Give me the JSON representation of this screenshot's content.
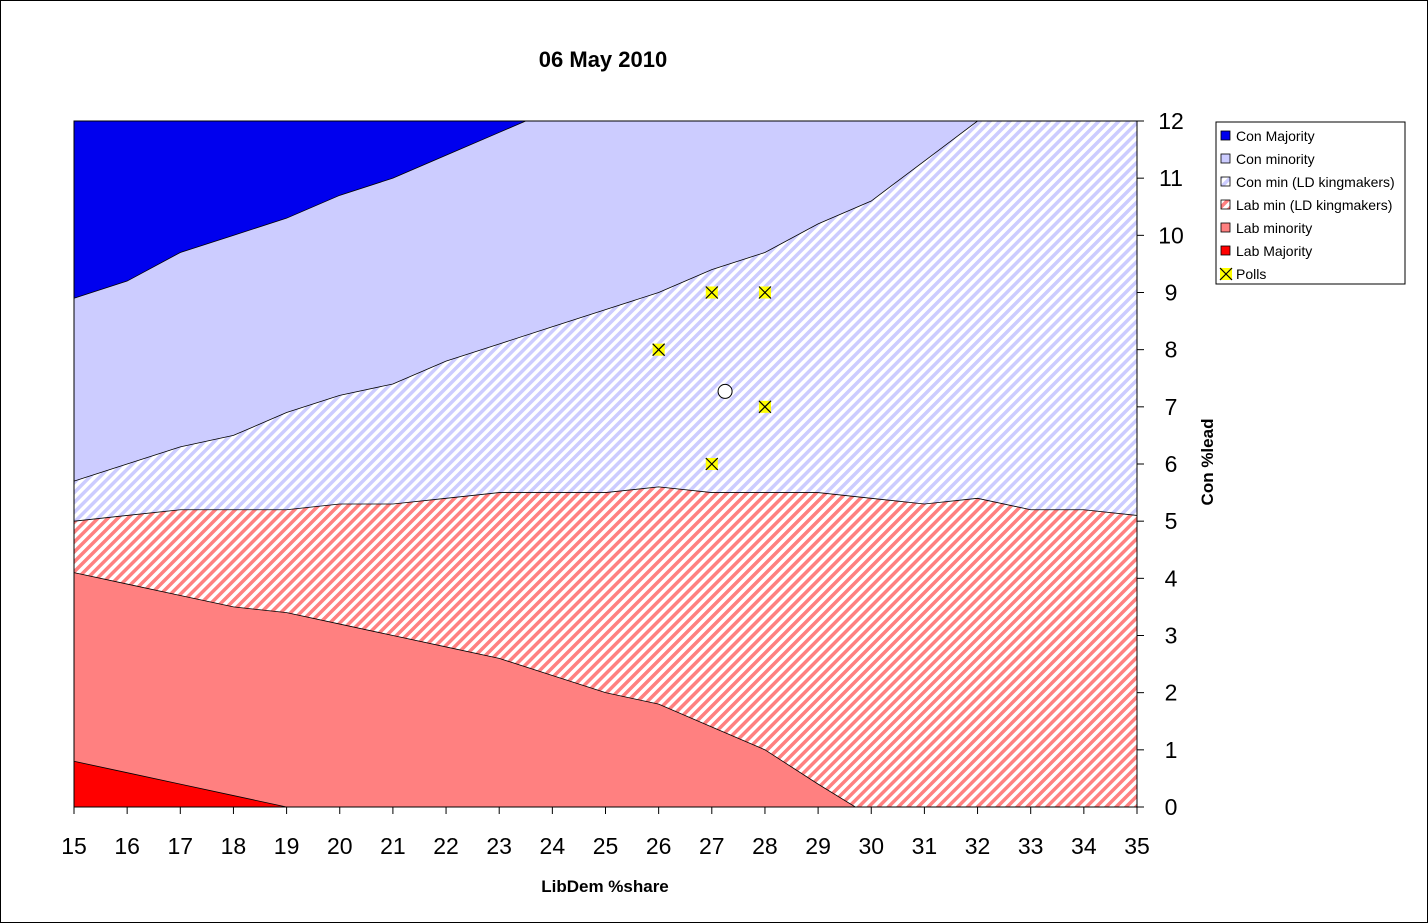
{
  "chart_data": {
    "type": "area",
    "title": "06 May 2010",
    "xlabel": "LibDem %share",
    "ylabel": "Con %lead",
    "xlim": [
      15,
      35
    ],
    "ylim": [
      0,
      12
    ],
    "x_ticks": [
      15,
      16,
      17,
      18,
      19,
      20,
      21,
      22,
      23,
      24,
      25,
      26,
      27,
      28,
      29,
      30,
      31,
      32,
      33,
      34,
      35
    ],
    "y_ticks": [
      0,
      1,
      2,
      3,
      4,
      5,
      6,
      7,
      8,
      9,
      10,
      11,
      12
    ],
    "y_axis_side": "right",
    "grid": false,
    "legend_position": "right",
    "boundaries": [
      {
        "name": "Lab Majority",
        "x": [
          15,
          16,
          17,
          18,
          19,
          20,
          21,
          22,
          23,
          24,
          25,
          26,
          27,
          28,
          29,
          30,
          31,
          32,
          33,
          34,
          35
        ],
        "y": [
          0.8,
          0.6,
          0.4,
          0.2,
          0,
          0,
          0,
          0,
          0,
          0,
          0,
          0,
          0,
          0,
          0,
          0,
          0,
          0,
          0,
          0,
          0
        ]
      },
      {
        "name": "Lab minority",
        "x": [
          15,
          16,
          17,
          18,
          19,
          20,
          21,
          22,
          23,
          24,
          25,
          26,
          27,
          28,
          29,
          29.7,
          30,
          31,
          32,
          33,
          34,
          35
        ],
        "y": [
          4.1,
          3.9,
          3.7,
          3.5,
          3.4,
          3.2,
          3.0,
          2.8,
          2.6,
          2.3,
          2.0,
          1.8,
          1.4,
          1.0,
          0.4,
          0,
          0,
          0,
          0,
          0,
          0,
          0
        ]
      },
      {
        "name": "Lab min (LD kingmakers)",
        "x": [
          15,
          16,
          17,
          18,
          19,
          20,
          21,
          22,
          23,
          24,
          25,
          26,
          27,
          28,
          29,
          30,
          31,
          32,
          33,
          34,
          35
        ],
        "y": [
          5.0,
          5.1,
          5.2,
          5.2,
          5.2,
          5.3,
          5.3,
          5.4,
          5.5,
          5.5,
          5.5,
          5.6,
          5.5,
          5.5,
          5.5,
          5.4,
          5.3,
          5.4,
          5.2,
          5.2,
          5.1
        ]
      },
      {
        "name": "Con min (LD kingmakers)",
        "x": [
          15,
          16,
          17,
          18,
          19,
          20,
          21,
          22,
          23,
          24,
          25,
          26,
          27,
          28,
          29,
          30,
          31,
          32,
          33,
          34,
          35
        ],
        "y": [
          5.7,
          6.0,
          6.3,
          6.5,
          6.9,
          7.2,
          7.4,
          7.8,
          8.1,
          8.4,
          8.7,
          9.0,
          9.4,
          9.7,
          10.2,
          10.6,
          11.3,
          12,
          12,
          12,
          12
        ]
      },
      {
        "name": "Con minority",
        "x": [
          15,
          16,
          17,
          18,
          19,
          20,
          21,
          22,
          23,
          23.5,
          24,
          25,
          26,
          27,
          28,
          29,
          30,
          31,
          32,
          33,
          34,
          35
        ],
        "y": [
          8.9,
          9.2,
          9.7,
          10.0,
          10.3,
          10.7,
          11.0,
          11.4,
          11.8,
          12,
          12,
          12,
          12,
          12,
          12,
          12,
          12,
          12,
          12,
          12,
          12,
          12
        ]
      },
      {
        "name": "Con Majority",
        "x": [
          15,
          35
        ],
        "y": [
          12,
          12
        ]
      }
    ],
    "polls": {
      "name": "Polls",
      "points": [
        {
          "x": 26,
          "y": 8
        },
        {
          "x": 27,
          "y": 9
        },
        {
          "x": 28,
          "y": 9
        },
        {
          "x": 28,
          "y": 7
        },
        {
          "x": 27,
          "y": 6
        }
      ]
    },
    "average_point": {
      "x": 27.25,
      "y": 7.27
    },
    "legend": [
      {
        "label": "Con Majority",
        "color": "#0000ee",
        "pattern": "solid"
      },
      {
        "label": "Con minority",
        "color": "#ccccff",
        "pattern": "solid"
      },
      {
        "label": "Con min (LD kingmakers)",
        "color": "#ccccff",
        "pattern": "hatch"
      },
      {
        "label": "Lab min (LD kingmakers)",
        "color": "#ff8080",
        "pattern": "hatch"
      },
      {
        "label": "Lab minority",
        "color": "#ff8080",
        "pattern": "solid"
      },
      {
        "label": "Lab Majority",
        "color": "#ff0000",
        "pattern": "solid"
      },
      {
        "label": "Polls",
        "color": "#ffff00",
        "pattern": "marker"
      }
    ]
  }
}
